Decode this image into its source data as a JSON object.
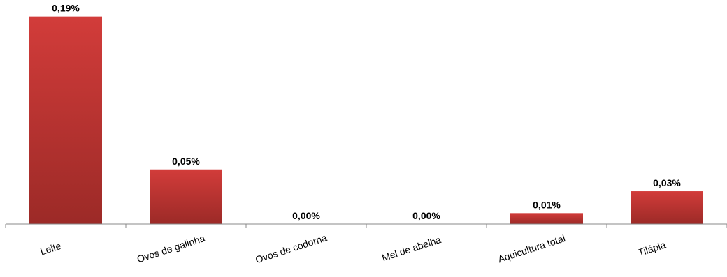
{
  "chart_data": {
    "type": "bar",
    "categories": [
      "Leite",
      "Ovos de galinha",
      "Ovos de codorna",
      "Mel de abelha",
      "Aquicultura total",
      "Tilápia"
    ],
    "values": [
      0.19,
      0.05,
      0.0,
      0.0,
      0.01,
      0.03
    ],
    "data_labels": [
      "0,19%",
      "0,05%",
      "0,00%",
      "0,00%",
      "0,01%",
      "0,03%"
    ],
    "title": "",
    "xlabel": "",
    "ylabel": "",
    "ylim": [
      0,
      0.2
    ],
    "grid": false,
    "legend": "none",
    "tick_label_rotation_deg": -18,
    "colors": {
      "bar_top": "#d23c3a",
      "bar_bottom": "#9c2a27",
      "axis": "#888888"
    }
  }
}
